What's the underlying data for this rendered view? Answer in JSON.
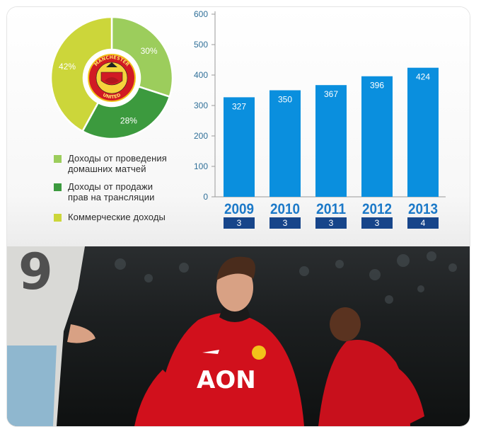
{
  "colors": {
    "pie_light_green": "#9ccd5c",
    "pie_dark_green": "#3c9a3e",
    "pie_yellow_green": "#ccd63a",
    "bar_blue": "#0a8fde",
    "year_blue": "#1c79c8",
    "badge_navy": "#17458a"
  },
  "chart_data": [
    {
      "type": "pie",
      "labels": [
        "Доходы от проведения домашних матчей",
        "Доходы от продажи прав на трансляции",
        "Коммерческие доходы"
      ],
      "values": [
        30,
        28,
        42
      ],
      "value_labels": [
        "30%",
        "28%",
        "42%"
      ],
      "legend_placement": "bottom"
    },
    {
      "type": "bar",
      "categories": [
        "2009",
        "2010",
        "2011",
        "2012",
        "2013"
      ],
      "values": [
        327,
        350,
        367,
        396,
        424
      ],
      "ylim": [
        0,
        600
      ],
      "yticks": [
        "0",
        "100",
        "200",
        "300",
        "400",
        "500",
        "600"
      ],
      "grid": false,
      "badges": [
        "3",
        "3",
        "3",
        "3",
        "4"
      ]
    }
  ],
  "legend": {
    "items": [
      {
        "label": "Доходы от проведения\nдомашних матчей",
        "color": "#9ccd5c"
      },
      {
        "label": "Доходы от продажи\nправ на трансляции",
        "color": "#3c9a3e"
      },
      {
        "label": "Коммерческие доходы",
        "color": "#ccd63a"
      }
    ]
  },
  "logo": {
    "top_text": "MANCHESTER",
    "bottom_text": "UNITED"
  },
  "photo": {
    "sponsor_text": "AON",
    "player_number": "9"
  }
}
